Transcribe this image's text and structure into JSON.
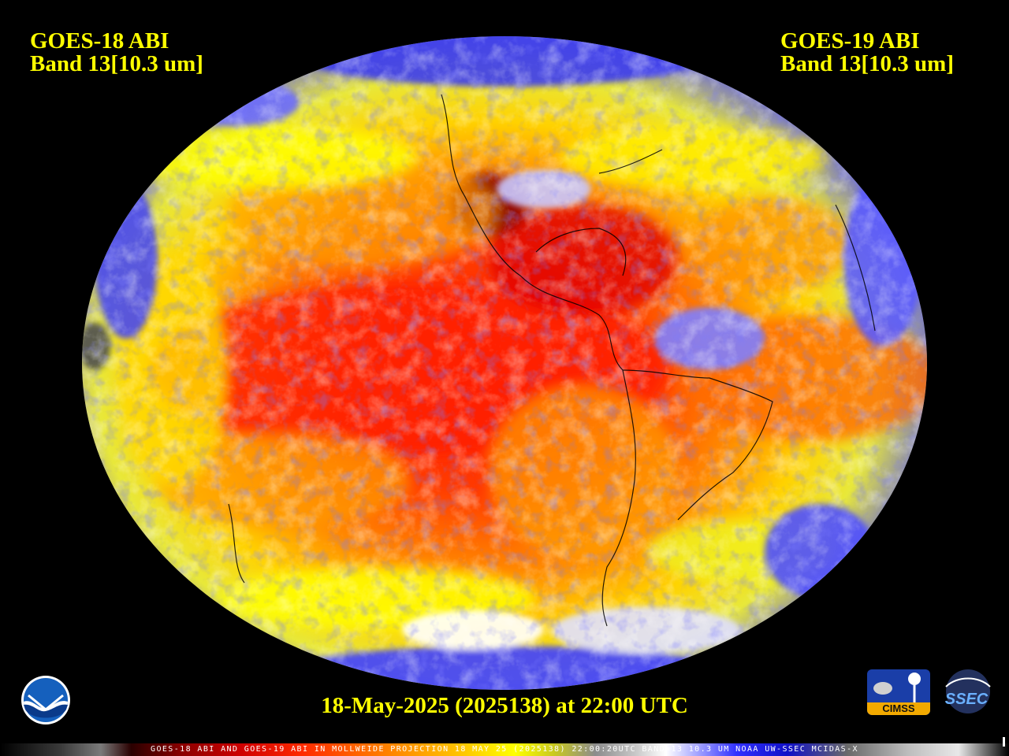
{
  "left_title": {
    "line1": "GOES-18 ABI",
    "line2": "Band 13[10.3 um]"
  },
  "right_title": {
    "line1": "GOES-19 ABI",
    "line2": "Band 13[10.3 um]"
  },
  "timestamp": "18-May-2025 (2025138) at 22:00 UTC",
  "colorbar_caption": "GOES-18 ABI AND GOES-19 ABI IN MOLLWEIDE PROJECTION 18 MAY 25 (2025138) 22:00:20UTC BAND=13 10.3 UM NOAA UW-SSEC MCIDAS-X",
  "logos": {
    "noaa": "NOAA",
    "cimss": "CIMSS",
    "ssec": "SSEC"
  },
  "colors": {
    "title_text": "#ffff00",
    "background": "#000000",
    "warm_surface": "#ff3000",
    "cold_cloud": "#3030ff",
    "high_cloud": "#ffffff"
  }
}
